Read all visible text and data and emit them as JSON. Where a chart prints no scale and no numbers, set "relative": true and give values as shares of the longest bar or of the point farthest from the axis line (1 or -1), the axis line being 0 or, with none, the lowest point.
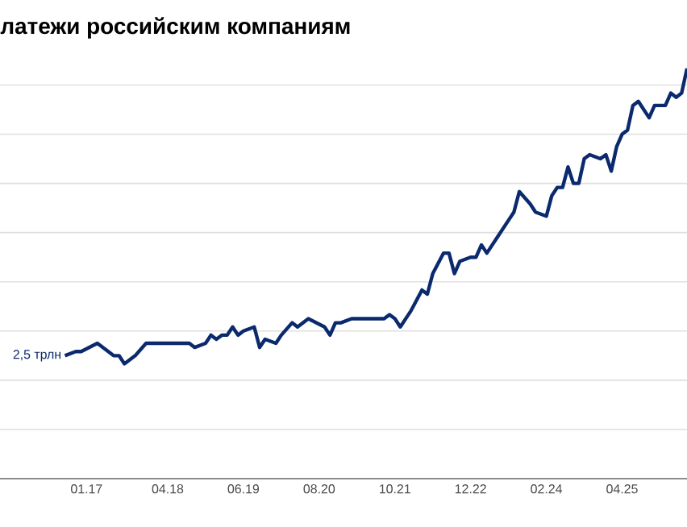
{
  "chart_data": {
    "type": "line",
    "title": "латежи российским компаниям",
    "relative": true,
    "grid": "y",
    "color": "#0b2a6e",
    "x": [
      "2016-09",
      "2016-11",
      "2016-12",
      "2017-03",
      "2017-06",
      "2017-07",
      "2017-08",
      "2017-10",
      "2017-12",
      "2018-02",
      "2018-05",
      "2018-06",
      "2018-08",
      "2018-09",
      "2018-11",
      "2018-12",
      "2019-01",
      "2019-02",
      "2019-03",
      "2019-04",
      "2019-05",
      "2019-06",
      "2019-08",
      "2019-09",
      "2019-10",
      "2019-12",
      "2020-01",
      "2020-03",
      "2020-04",
      "2020-06",
      "2020-09",
      "2020-10",
      "2020-11",
      "2020-12",
      "2021-02",
      "2021-03",
      "2021-05",
      "2021-06",
      "2021-08",
      "2021-09",
      "2021-10",
      "2021-11",
      "2022-01",
      "2022-03",
      "2022-04",
      "2022-05",
      "2022-07",
      "2022-08",
      "2022-09",
      "2022-10",
      "2022-12",
      "2023-01",
      "2023-02",
      "2023-03",
      "2023-05",
      "2023-07",
      "2023-08",
      "2023-09",
      "2023-11",
      "2023-12",
      "2024-02",
      "2024-03",
      "2024-04",
      "2024-05",
      "2024-06",
      "2024-07",
      "2024-08",
      "2024-09",
      "2024-10",
      "2024-12",
      "2025-01",
      "2025-02",
      "2025-03",
      "2025-04",
      "2025-05",
      "2025-06",
      "2025-07",
      "2025-09",
      "2025-10",
      "2025-12",
      "2026-01",
      "2026-02",
      "2026-03",
      "2026-04"
    ],
    "values": [
      0.3,
      0.31,
      0.31,
      0.33,
      0.3,
      0.3,
      0.28,
      0.3,
      0.33,
      0.33,
      0.33,
      0.33,
      0.33,
      0.32,
      0.33,
      0.35,
      0.34,
      0.35,
      0.35,
      0.37,
      0.35,
      0.36,
      0.37,
      0.32,
      0.34,
      0.33,
      0.35,
      0.38,
      0.37,
      0.39,
      0.37,
      0.35,
      0.38,
      0.38,
      0.39,
      0.39,
      0.39,
      0.39,
      0.39,
      0.4,
      0.39,
      0.37,
      0.41,
      0.46,
      0.45,
      0.5,
      0.55,
      0.55,
      0.5,
      0.53,
      0.54,
      0.54,
      0.57,
      0.55,
      0.59,
      0.63,
      0.65,
      0.7,
      0.67,
      0.65,
      0.64,
      0.69,
      0.71,
      0.71,
      0.76,
      0.72,
      0.72,
      0.78,
      0.79,
      0.78,
      0.79,
      0.75,
      0.81,
      0.84,
      0.85,
      0.91,
      0.92,
      0.88,
      0.91,
      0.91,
      0.94,
      0.93,
      0.94,
      1.0
    ],
    "xlim": [
      "2015-09",
      "2026-04"
    ],
    "xticks": [
      {
        "value": "2017-01",
        "label": "01.17"
      },
      {
        "value": "2018-04",
        "label": "04.18"
      },
      {
        "value": "2019-06",
        "label": "06.19"
      },
      {
        "value": "2020-08",
        "label": "08.20"
      },
      {
        "value": "2021-10",
        "label": "10.21"
      },
      {
        "value": "2022-12",
        "label": "12.22"
      },
      {
        "value": "2024-02",
        "label": "02.24"
      },
      {
        "value": "2025-04",
        "label": "04.25"
      }
    ],
    "annotations": [
      {
        "text": "2,5 трлн",
        "x": "2016-09",
        "y": 0.3
      }
    ]
  }
}
